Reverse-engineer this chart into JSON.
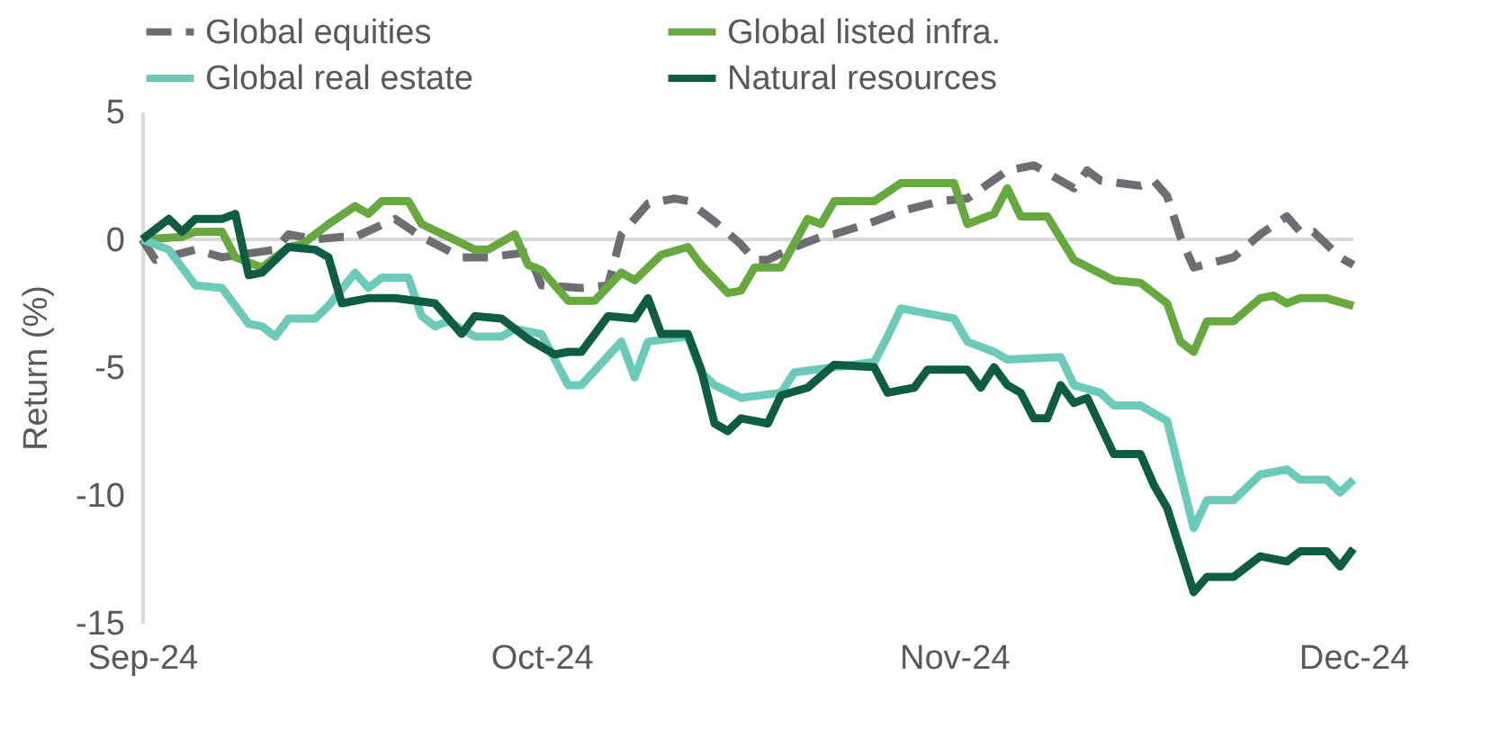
{
  "chart_data": {
    "type": "line",
    "ylabel": "Return (%)",
    "xlim": [
      "2024-09-01",
      "2024-12-01"
    ],
    "xticks": [
      {
        "value": "2024-09-01",
        "label": "Sep-24"
      },
      {
        "value": "2024-10-01",
        "label": "Oct-24"
      },
      {
        "value": "2024-11-01",
        "label": "Nov-24"
      },
      {
        "value": "2024-12-01",
        "label": "Dec-24"
      }
    ],
    "ylim": [
      -15,
      5
    ],
    "yticks": [
      -15,
      -10,
      -5,
      0,
      5
    ],
    "grid": false,
    "legend": "top",
    "ref_lines": [
      {
        "axis": "y",
        "value": 0,
        "color": "#d9d9d9"
      }
    ],
    "series": [
      {
        "name": "Global equities",
        "color": "#6d6e71",
        "line_style": "dashed",
        "x": [
          "2024-09-01",
          "2024-09-02",
          "2024-09-05",
          "2024-09-07",
          "2024-09-11",
          "2024-09-12",
          "2024-09-14",
          "2024-09-16",
          "2024-09-17",
          "2024-09-20",
          "2024-09-22",
          "2024-09-25",
          "2024-09-27",
          "2024-09-30",
          "2024-10-01",
          "2024-10-04",
          "2024-10-06",
          "2024-10-07",
          "2024-10-09",
          "2024-10-11",
          "2024-10-12",
          "2024-10-14",
          "2024-10-16",
          "2024-10-17",
          "2024-10-18",
          "2024-10-20",
          "2024-10-22",
          "2024-10-23",
          "2024-10-26",
          "2024-10-28",
          "2024-10-31",
          "2024-11-02",
          "2024-11-05",
          "2024-11-07",
          "2024-11-10",
          "2024-11-11",
          "2024-11-12",
          "2024-11-15",
          "2024-11-16",
          "2024-11-17",
          "2024-11-18",
          "2024-11-19",
          "2024-11-22",
          "2024-11-24",
          "2024-11-26",
          "2024-11-27",
          "2024-11-28",
          "2024-11-30",
          "2024-12-01"
        ],
        "values": [
          0.0,
          -0.8,
          -0.4,
          -0.7,
          -0.4,
          0.2,
          0.0,
          0.1,
          0.1,
          0.8,
          0.1,
          -0.7,
          -0.7,
          -0.5,
          -1.8,
          -1.9,
          -1.8,
          0.2,
          1.4,
          1.6,
          1.5,
          0.7,
          -0.2,
          -0.8,
          -0.8,
          -0.3,
          0.1,
          0.2,
          0.7,
          1.1,
          1.5,
          1.6,
          2.7,
          2.9,
          2.0,
          2.7,
          2.3,
          2.1,
          2.3,
          1.7,
          0.1,
          -1.1,
          -0.7,
          0.2,
          0.9,
          0.3,
          0.3,
          -0.7,
          -1.0
        ]
      },
      {
        "name": "Global listed infra.",
        "color": "#67a83f",
        "line_style": "solid",
        "x": [
          "2024-09-01",
          "2024-09-04",
          "2024-09-05",
          "2024-09-07",
          "2024-09-08",
          "2024-09-10",
          "2024-09-12",
          "2024-09-13",
          "2024-09-15",
          "2024-09-17",
          "2024-09-18",
          "2024-09-19",
          "2024-09-21",
          "2024-09-22",
          "2024-09-24",
          "2024-09-26",
          "2024-09-27",
          "2024-09-29",
          "2024-09-30",
          "2024-10-01",
          "2024-10-03",
          "2024-10-05",
          "2024-10-07",
          "2024-10-08",
          "2024-10-10",
          "2024-10-12",
          "2024-10-13",
          "2024-10-15",
          "2024-10-16",
          "2024-10-17",
          "2024-10-19",
          "2024-10-21",
          "2024-10-22",
          "2024-10-23",
          "2024-10-26",
          "2024-10-28",
          "2024-11-01",
          "2024-11-02",
          "2024-11-04",
          "2024-11-05",
          "2024-11-06",
          "2024-11-08",
          "2024-11-10",
          "2024-11-13",
          "2024-11-15",
          "2024-11-17",
          "2024-11-18",
          "2024-11-19",
          "2024-11-20",
          "2024-11-22",
          "2024-11-24",
          "2024-11-25",
          "2024-11-26",
          "2024-11-27",
          "2024-11-29",
          "2024-12-01"
        ],
        "values": [
          0.0,
          0.1,
          0.3,
          0.3,
          -0.7,
          -1.1,
          -0.3,
          -0.2,
          0.6,
          1.3,
          1.0,
          1.5,
          1.5,
          0.6,
          0.1,
          -0.4,
          -0.4,
          0.2,
          -1.0,
          -1.2,
          -2.4,
          -2.4,
          -1.3,
          -1.6,
          -0.6,
          -0.3,
          -1.0,
          -2.1,
          -2.0,
          -1.1,
          -1.1,
          0.8,
          0.6,
          1.5,
          1.5,
          2.2,
          2.2,
          0.6,
          1.0,
          2.0,
          0.9,
          0.9,
          -0.8,
          -1.6,
          -1.7,
          -2.5,
          -4.0,
          -4.4,
          -3.2,
          -3.2,
          -2.3,
          -2.2,
          -2.5,
          -2.3,
          -2.3,
          -2.6
        ]
      },
      {
        "name": "Global real estate",
        "color": "#6ccabb",
        "line_style": "solid",
        "x": [
          "2024-09-01",
          "2024-09-03",
          "2024-09-05",
          "2024-09-07",
          "2024-09-09",
          "2024-09-10",
          "2024-09-11",
          "2024-09-12",
          "2024-09-14",
          "2024-09-15",
          "2024-09-17",
          "2024-09-18",
          "2024-09-19",
          "2024-09-21",
          "2024-09-22",
          "2024-09-23",
          "2024-09-24",
          "2024-09-26",
          "2024-09-28",
          "2024-09-29",
          "2024-10-01",
          "2024-10-02",
          "2024-10-03",
          "2024-10-04",
          "2024-10-07",
          "2024-10-08",
          "2024-10-09",
          "2024-10-12",
          "2024-10-13",
          "2024-10-14",
          "2024-10-16",
          "2024-10-19",
          "2024-10-20",
          "2024-10-23",
          "2024-10-26",
          "2024-10-27",
          "2024-10-28",
          "2024-10-31",
          "2024-11-01",
          "2024-11-02",
          "2024-11-04",
          "2024-11-05",
          "2024-11-09",
          "2024-11-10",
          "2024-11-12",
          "2024-11-13",
          "2024-11-15",
          "2024-11-17",
          "2024-11-19",
          "2024-11-20",
          "2024-11-22",
          "2024-11-24",
          "2024-11-26",
          "2024-11-27",
          "2024-11-29",
          "2024-11-30",
          "2024-12-01"
        ],
        "values": [
          0.0,
          -0.4,
          -1.8,
          -1.9,
          -3.3,
          -3.4,
          -3.8,
          -3.1,
          -3.1,
          -2.6,
          -1.3,
          -1.9,
          -1.5,
          -1.5,
          -3.0,
          -3.4,
          -3.2,
          -3.8,
          -3.8,
          -3.5,
          -3.7,
          -4.7,
          -5.7,
          -5.7,
          -4.0,
          -5.4,
          -4.0,
          -3.8,
          -5.2,
          -5.7,
          -6.2,
          -6.0,
          -5.2,
          -5.0,
          -4.8,
          -3.8,
          -2.7,
          -3.0,
          -3.1,
          -4.0,
          -4.4,
          -4.7,
          -4.6,
          -5.7,
          -6.0,
          -6.5,
          -6.5,
          -7.1,
          -11.3,
          -10.2,
          -10.2,
          -9.2,
          -9.0,
          -9.4,
          -9.4,
          -9.9,
          -9.4
        ]
      },
      {
        "name": "Natural resources",
        "color": "#0e5c42",
        "line_style": "solid",
        "x": [
          "2024-09-01",
          "2024-09-03",
          "2024-09-04",
          "2024-09-05",
          "2024-09-07",
          "2024-09-08",
          "2024-09-09",
          "2024-09-10",
          "2024-09-12",
          "2024-09-14",
          "2024-09-15",
          "2024-09-16",
          "2024-09-18",
          "2024-09-20",
          "2024-09-23",
          "2024-09-25",
          "2024-09-26",
          "2024-09-28",
          "2024-09-30",
          "2024-10-02",
          "2024-10-03",
          "2024-10-04",
          "2024-10-06",
          "2024-10-08",
          "2024-10-09",
          "2024-10-10",
          "2024-10-12",
          "2024-10-13",
          "2024-10-14",
          "2024-10-15",
          "2024-10-16",
          "2024-10-18",
          "2024-10-19",
          "2024-10-21",
          "2024-10-23",
          "2024-10-26",
          "2024-10-27",
          "2024-10-29",
          "2024-10-30",
          "2024-11-02",
          "2024-11-03",
          "2024-11-04",
          "2024-11-05",
          "2024-11-06",
          "2024-11-07",
          "2024-11-08",
          "2024-11-09",
          "2024-11-10",
          "2024-11-11",
          "2024-11-13",
          "2024-11-15",
          "2024-11-16",
          "2024-11-17",
          "2024-11-19",
          "2024-11-20",
          "2024-11-22",
          "2024-11-24",
          "2024-11-26",
          "2024-11-27",
          "2024-11-29",
          "2024-11-30",
          "2024-12-01"
        ],
        "values": [
          0.0,
          0.8,
          0.3,
          0.8,
          0.8,
          1.0,
          -1.4,
          -1.3,
          -0.3,
          -0.4,
          -0.7,
          -2.5,
          -2.3,
          -2.3,
          -2.5,
          -3.7,
          -3.0,
          -3.1,
          -3.9,
          -4.5,
          -4.4,
          -4.4,
          -3.0,
          -3.1,
          -2.3,
          -3.7,
          -3.7,
          -5.1,
          -7.2,
          -7.5,
          -7.0,
          -7.2,
          -6.1,
          -5.8,
          -4.9,
          -5.0,
          -6.0,
          -5.8,
          -5.1,
          -5.1,
          -5.8,
          -5.0,
          -5.7,
          -6.0,
          -7.0,
          -7.0,
          -5.7,
          -6.4,
          -6.2,
          -8.4,
          -8.4,
          -9.6,
          -10.5,
          -13.8,
          -13.2,
          -13.2,
          -12.4,
          -12.6,
          -12.2,
          -12.2,
          -12.8,
          -12.1
        ]
      }
    ]
  }
}
